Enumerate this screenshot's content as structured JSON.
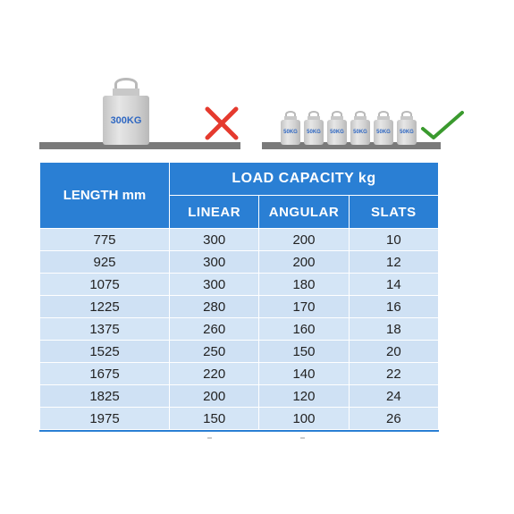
{
  "illustration": {
    "heavy_weight_label": "300KG",
    "small_weight_label": "50KG",
    "small_weight_count": 6,
    "wrong_color": "#e53a2e",
    "right_color": "#3a9a2e"
  },
  "table": {
    "header_length": "LENGTH mm",
    "header_capacity": "LOAD CAPACITY kg",
    "sub_headers": [
      "LINEAR",
      "ANGULAR",
      "SLATS"
    ],
    "rows": [
      [
        "775",
        "300",
        "200",
        "10"
      ],
      [
        "925",
        "300",
        "200",
        "12"
      ],
      [
        "1075",
        "300",
        "180",
        "14"
      ],
      [
        "1225",
        "280",
        "170",
        "16"
      ],
      [
        "1375",
        "260",
        "160",
        "18"
      ],
      [
        "1525",
        "250",
        "150",
        "20"
      ],
      [
        "1675",
        "220",
        "140",
        "22"
      ],
      [
        "1825",
        "200",
        "120",
        "24"
      ],
      [
        "1975",
        "150",
        "100",
        "26"
      ]
    ],
    "header_color": "#2a7fd4",
    "cell_color": "#d4e5f6"
  }
}
